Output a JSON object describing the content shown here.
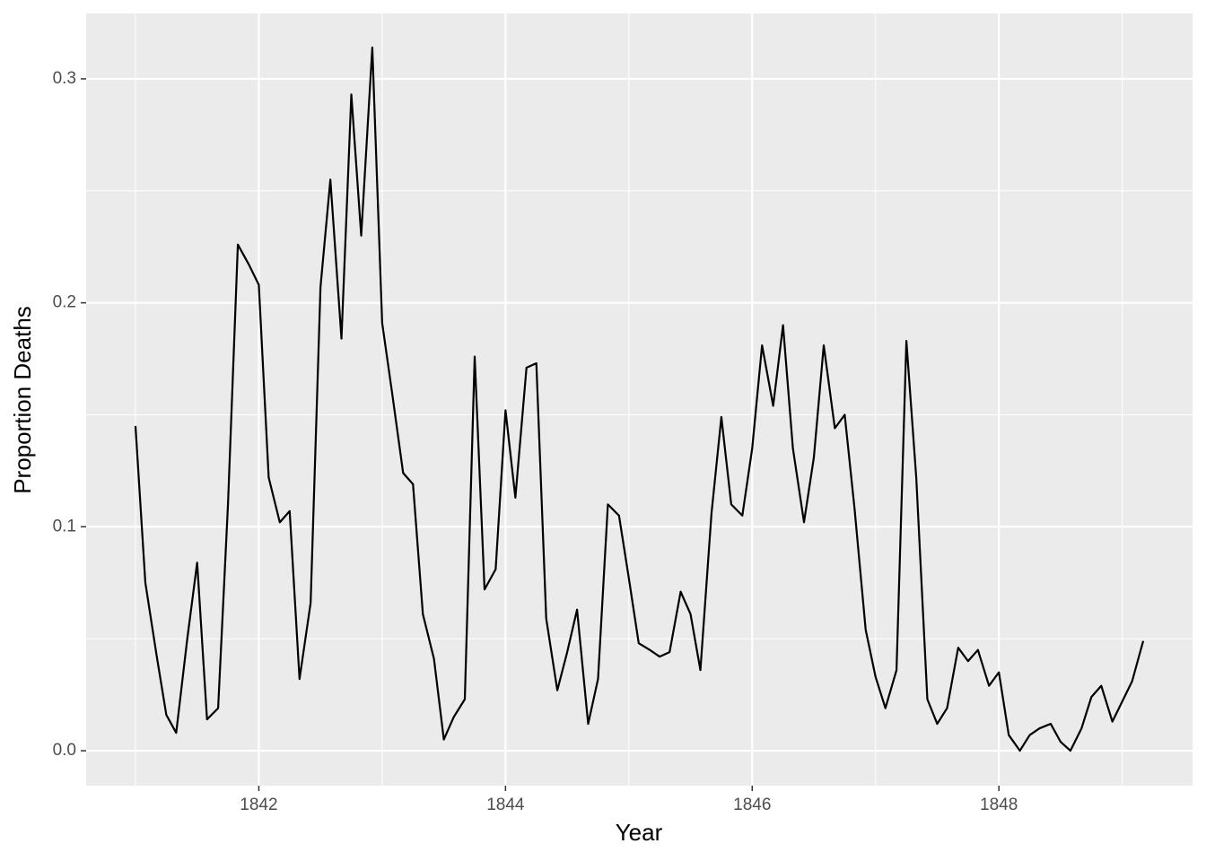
{
  "chart_data": {
    "type": "line",
    "x_label": "Year",
    "y_label": "Proportion Deaths",
    "x": [
      1841.0,
      1841.08,
      1841.17,
      1841.25,
      1841.33,
      1841.42,
      1841.5,
      1841.58,
      1841.67,
      1841.75,
      1841.83,
      1841.92,
      1842.0,
      1842.08,
      1842.17,
      1842.25,
      1842.33,
      1842.42,
      1842.5,
      1842.58,
      1842.67,
      1842.75,
      1842.83,
      1842.92,
      1843.0,
      1843.08,
      1843.17,
      1843.25,
      1843.33,
      1843.42,
      1843.5,
      1843.58,
      1843.67,
      1843.75,
      1843.83,
      1843.92,
      1844.0,
      1844.08,
      1844.17,
      1844.25,
      1844.33,
      1844.42,
      1844.5,
      1844.58,
      1844.67,
      1844.75,
      1844.83,
      1844.92,
      1845.0,
      1845.08,
      1845.17,
      1845.25,
      1845.33,
      1845.42,
      1845.5,
      1845.58,
      1845.67,
      1845.75,
      1845.83,
      1845.92,
      1846.0,
      1846.08,
      1846.17,
      1846.25,
      1846.33,
      1846.42,
      1846.5,
      1846.58,
      1846.67,
      1846.75,
      1846.83,
      1846.92,
      1847.0,
      1847.08,
      1847.17,
      1847.25,
      1847.33,
      1847.42,
      1847.5,
      1847.58,
      1847.67,
      1847.75,
      1847.83,
      1847.92,
      1848.0,
      1848.08,
      1848.17,
      1848.25,
      1848.33,
      1848.42,
      1848.5,
      1848.58,
      1848.67,
      1848.75,
      1848.83,
      1848.92,
      1849.0,
      1849.08,
      1849.17
    ],
    "series": [
      {
        "color": "#000000",
        "values": [
          0.145,
          0.075,
          0.043,
          0.016,
          0.008,
          0.05,
          0.084,
          0.014,
          0.019,
          0.11,
          0.226,
          0.217,
          0.208,
          0.122,
          0.102,
          0.107,
          0.032,
          0.066,
          0.207,
          0.255,
          0.184,
          0.293,
          0.23,
          0.314,
          0.191,
          0.16,
          0.124,
          0.119,
          0.061,
          0.041,
          0.005,
          0.015,
          0.023,
          0.176,
          0.072,
          0.081,
          0.152,
          0.113,
          0.171,
          0.173,
          0.059,
          0.027,
          0.044,
          0.063,
          0.012,
          0.032,
          0.11,
          0.105,
          0.077,
          0.048,
          0.045,
          0.042,
          0.044,
          0.071,
          0.061,
          0.036,
          0.106,
          0.149,
          0.11,
          0.105,
          0.135,
          0.181,
          0.154,
          0.19,
          0.135,
          0.102,
          0.131,
          0.181,
          0.144,
          0.15,
          0.108,
          0.054,
          0.033,
          0.019,
          0.036,
          0.183,
          0.122,
          0.023,
          0.012,
          0.019,
          0.046,
          0.04,
          0.045,
          0.029,
          0.035,
          0.007,
          0.0,
          0.007,
          0.01,
          0.012,
          0.004,
          0.0,
          0.01,
          0.024,
          0.029,
          0.013,
          0.022,
          0.031,
          0.049
        ]
      }
    ],
    "xlim": [
      1840.6,
      1849.57
    ],
    "ylim": [
      -0.0156,
      0.3292
    ],
    "xticks": [
      1842,
      1844,
      1846,
      1848
    ],
    "yticks": [
      {
        "value": 0,
        "label": "0.0"
      },
      0.1,
      0.2,
      0.3
    ],
    "minor_xticks": [
      1841,
      1843,
      1845,
      1847,
      1849
    ],
    "minor_yticks": [
      0.05,
      0.15,
      0.25
    ],
    "grid": true
  }
}
